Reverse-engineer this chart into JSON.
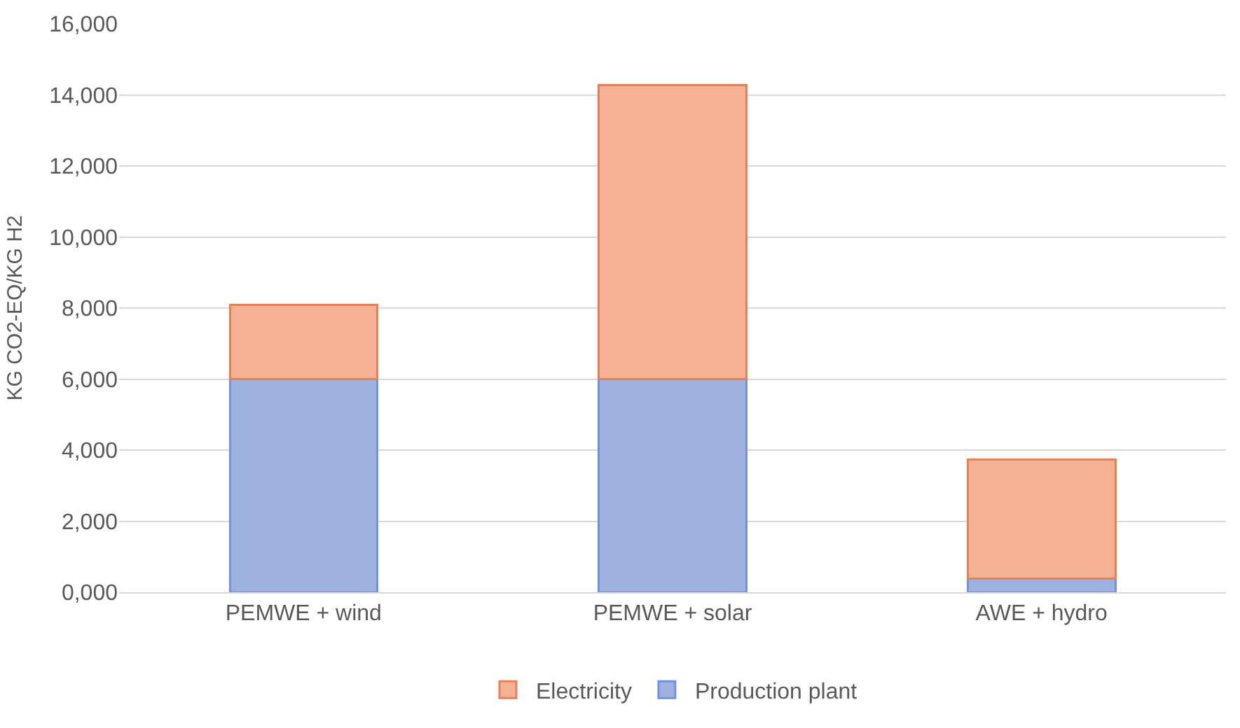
{
  "chart_data": {
    "type": "bar",
    "ylabel": "KG CO2-EQ/KG H2",
    "categories": [
      "PEMWE + wind",
      "PEMWE + solar",
      "AWE + hydro"
    ],
    "series": [
      {
        "name": "Production plant",
        "color": "#9db0de",
        "values": [
          6000,
          6000,
          380
        ]
      },
      {
        "name": "Electricity",
        "color": "#f5b193",
        "values": [
          2080,
          8270,
          3360
        ]
      }
    ],
    "stacked": true,
    "ylim": [
      0,
      16000
    ],
    "yticks": [
      {
        "value": 0,
        "label": "0,000"
      },
      {
        "value": 2000,
        "label": "2,000"
      },
      {
        "value": 4000,
        "label": "4,000"
      },
      {
        "value": 6000,
        "label": "6,000"
      },
      {
        "value": 8000,
        "label": "8,000"
      },
      {
        "value": 10000,
        "label": "10,000"
      },
      {
        "value": 12000,
        "label": "12,000"
      },
      {
        "value": 14000,
        "label": "14,000"
      },
      {
        "value": 16000,
        "label": "16,000"
      }
    ],
    "grid": "y",
    "legend": "bottom"
  }
}
